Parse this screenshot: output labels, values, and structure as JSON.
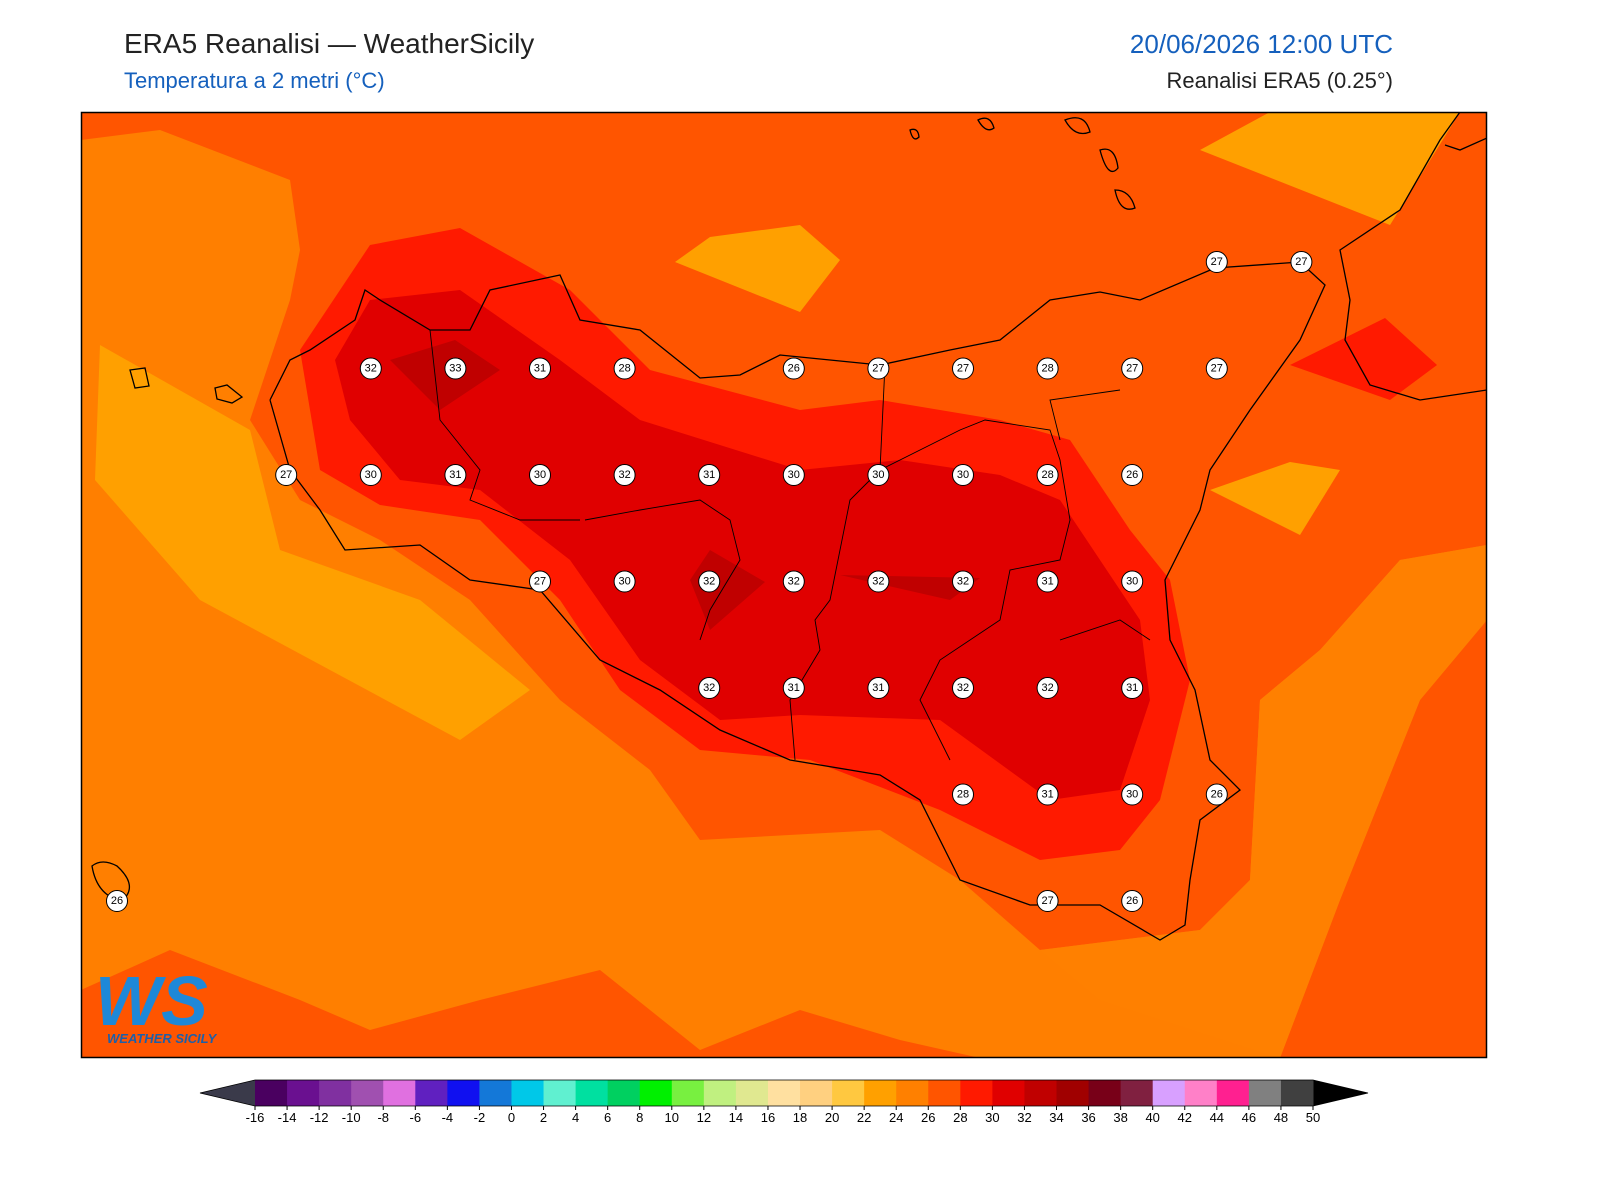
{
  "header": {
    "title": "ERA5 Reanalisi — WeatherSicily",
    "subtitle": "Temperatura a 2 metri (°C)",
    "datetime": "20/06/2026 12:00 UTC",
    "source": "Reanalisi ERA5 (0.25°)"
  },
  "logo": {
    "mark": "WS",
    "name": "WEATHER SICILY"
  },
  "points": {
    "rows": [
      [
        null,
        null,
        null,
        null,
        null,
        null,
        null,
        null,
        null,
        null,
        null,
        null,
        null,
        27,
        27
      ],
      [
        null,
        null,
        null,
        32,
        33,
        31,
        28,
        null,
        26,
        27,
        27,
        28,
        27,
        27,
        null
      ],
      [
        null,
        null,
        27,
        30,
        31,
        30,
        32,
        31,
        30,
        30,
        30,
        28,
        26,
        null,
        null
      ],
      [
        null,
        null,
        null,
        null,
        null,
        27,
        30,
        32,
        32,
        32,
        32,
        31,
        30,
        null,
        null
      ],
      [
        null,
        null,
        null,
        null,
        null,
        null,
        null,
        32,
        31,
        31,
        32,
        32,
        31,
        null,
        null
      ],
      [
        null,
        null,
        null,
        null,
        null,
        null,
        null,
        null,
        null,
        null,
        28,
        31,
        30,
        26,
        null
      ],
      [
        26,
        null,
        null,
        null,
        null,
        null,
        null,
        null,
        null,
        null,
        null,
        27,
        26,
        null,
        null
      ]
    ]
  },
  "colorbar": {
    "ticks": [
      -16,
      -14,
      -12,
      -10,
      -8,
      -6,
      -4,
      -2,
      0,
      2,
      4,
      6,
      8,
      10,
      12,
      14,
      16,
      18,
      20,
      22,
      24,
      26,
      28,
      30,
      32,
      34,
      36,
      38,
      40,
      42,
      44,
      46,
      48,
      50
    ],
    "colors": [
      "#4a0060",
      "#6a1090",
      "#8030a0",
      "#a050b0",
      "#e070e0",
      "#6020c0",
      "#1010f0",
      "#1478d8",
      "#00c8e8",
      "#60f0d0",
      "#00e0a0",
      "#00d060",
      "#00f000",
      "#78f040",
      "#c0f080",
      "#e0e890",
      "#ffe0a0",
      "#ffd080",
      "#ffc840",
      "#ffa000",
      "#ff8000",
      "#ff5500",
      "#ff1a00",
      "#e00000",
      "#c00000",
      "#a00000",
      "#780018",
      "#802040",
      "#d8a0ff",
      "#ff80c8",
      "#ff2090",
      "#808080",
      "#404040"
    ],
    "under_color": "#3a3a4a",
    "over_color": "#000000"
  }
}
